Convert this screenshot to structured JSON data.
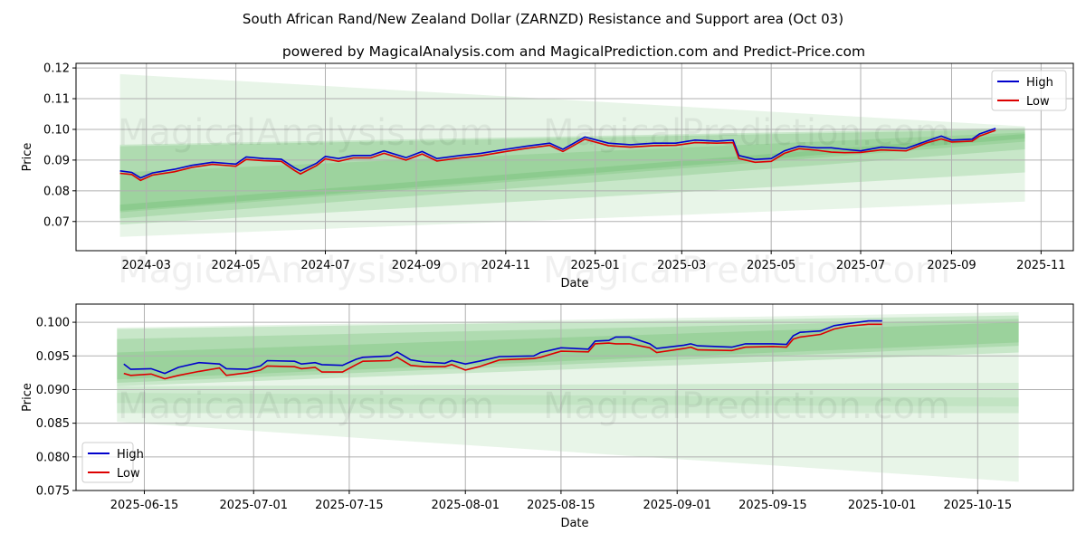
{
  "title": "South African Rand/New Zealand Dollar (ZARNZD) Resistance and Support area (Oct 03)",
  "subtitle": "powered by MagicalAnalysis.com and MagicalPrediction.com and Predict-Price.com",
  "watermarks": [
    "MagicalAnalysis.com",
    "MagicalPrediction.com"
  ],
  "colors": {
    "high": "#0000cc",
    "low": "#dd0000",
    "band": "#4caf50"
  },
  "chart_data": [
    {
      "type": "line",
      "xlabel": "Date",
      "ylabel": "Price",
      "xlim": [
        "2024-01-13",
        "2025-11-23"
      ],
      "ylim": [
        0.0605,
        0.1215
      ],
      "yticks": [
        "0.07",
        "0.08",
        "0.09",
        "0.10",
        "0.11",
        "0.12"
      ],
      "xticks": [
        "2024-03",
        "2024-05",
        "2024-07",
        "2024-09",
        "2024-11",
        "2025-01",
        "2025-03",
        "2025-05",
        "2025-07",
        "2025-09",
        "2025-11"
      ],
      "grid": true,
      "legend": "top-right",
      "legend_entries": [
        "High",
        "Low"
      ],
      "bands": {
        "start": "2024-02-12",
        "end": "2025-10-21",
        "items": [
          {
            "start": [
              0.065,
              0.118
            ],
            "end": [
              0.0765,
              0.101
            ],
            "opacity": 0.13
          },
          {
            "start": [
              0.069,
              0.095
            ],
            "end": [
              0.086,
              0.1005
            ],
            "opacity": 0.2
          },
          {
            "start": [
              0.071,
              0.0945
            ],
            "end": [
              0.0935,
              0.1
            ],
            "opacity": 0.2
          },
          {
            "start": [
              0.073,
              0.086
            ],
            "end": [
              0.096,
              0.099
            ],
            "opacity": 0.18
          },
          {
            "start": [
              0.0735,
              0.0755
            ],
            "end": [
              0.097,
              0.0985
            ],
            "opacity": 0.2
          }
        ]
      },
      "series": [
        {
          "name": "High",
          "x": [
            "2024-02-12",
            "2024-02-20",
            "2024-02-26",
            "2024-03-05",
            "2024-03-20",
            "2024-04-01",
            "2024-04-15",
            "2024-05-01",
            "2024-05-08",
            "2024-05-20",
            "2024-06-01",
            "2024-06-10",
            "2024-06-14",
            "2024-06-25",
            "2024-07-01",
            "2024-07-10",
            "2024-07-20",
            "2024-08-01",
            "2024-08-10",
            "2024-08-25",
            "2024-09-05",
            "2024-09-15",
            "2024-10-01",
            "2024-10-15",
            "2024-11-01",
            "2024-11-15",
            "2024-12-01",
            "2024-12-10",
            "2024-12-25",
            "2025-01-10",
            "2025-01-25",
            "2025-02-10",
            "2025-02-25",
            "2025-03-10",
            "2025-03-25",
            "2025-04-05",
            "2025-04-09",
            "2025-04-20",
            "2025-05-01",
            "2025-05-10",
            "2025-05-20",
            "2025-06-01",
            "2025-06-11",
            "2025-06-20",
            "2025-07-01",
            "2025-07-15",
            "2025-08-01",
            "2025-08-15",
            "2025-08-25",
            "2025-09-01",
            "2025-09-15",
            "2025-09-20",
            "2025-10-01"
          ],
          "values": [
            0.0865,
            0.086,
            0.0842,
            0.0858,
            0.087,
            0.0883,
            0.0893,
            0.0887,
            0.091,
            0.0905,
            0.0903,
            0.0875,
            0.0865,
            0.089,
            0.0912,
            0.0905,
            0.0915,
            0.0915,
            0.093,
            0.0908,
            0.0928,
            0.0905,
            0.0915,
            0.0922,
            0.0935,
            0.0945,
            0.0955,
            0.0935,
            0.0975,
            0.0955,
            0.095,
            0.0955,
            0.0955,
            0.0965,
            0.0962,
            0.0965,
            0.0915,
            0.0902,
            0.0905,
            0.093,
            0.0945,
            0.094,
            0.094,
            0.0935,
            0.093,
            0.0942,
            0.0938,
            0.0962,
            0.0978,
            0.0965,
            0.0968,
            0.0985,
            0.1003
          ]
        },
        {
          "name": "Low",
          "x": [
            "2024-02-12",
            "2024-02-20",
            "2024-02-26",
            "2024-03-05",
            "2024-03-20",
            "2024-04-01",
            "2024-04-15",
            "2024-05-01",
            "2024-05-08",
            "2024-05-20",
            "2024-06-01",
            "2024-06-10",
            "2024-06-14",
            "2024-06-25",
            "2024-07-01",
            "2024-07-10",
            "2024-07-20",
            "2024-08-01",
            "2024-08-10",
            "2024-08-25",
            "2024-09-05",
            "2024-09-15",
            "2024-10-01",
            "2024-10-15",
            "2024-11-01",
            "2024-11-15",
            "2024-12-01",
            "2024-12-10",
            "2024-12-25",
            "2025-01-10",
            "2025-01-25",
            "2025-02-10",
            "2025-02-25",
            "2025-03-10",
            "2025-03-25",
            "2025-04-05",
            "2025-04-09",
            "2025-04-20",
            "2025-05-01",
            "2025-05-10",
            "2025-05-20",
            "2025-06-01",
            "2025-06-11",
            "2025-06-20",
            "2025-07-01",
            "2025-07-15",
            "2025-08-01",
            "2025-08-15",
            "2025-08-25",
            "2025-09-01",
            "2025-09-15",
            "2025-09-20",
            "2025-10-01"
          ],
          "values": [
            0.0857,
            0.0853,
            0.0834,
            0.0851,
            0.0862,
            0.0876,
            0.0886,
            0.088,
            0.0902,
            0.0898,
            0.0896,
            0.0866,
            0.0855,
            0.0882,
            0.0904,
            0.0896,
            0.0907,
            0.0907,
            0.0922,
            0.09,
            0.092,
            0.0897,
            0.0907,
            0.0914,
            0.0928,
            0.0938,
            0.0948,
            0.0928,
            0.0968,
            0.0947,
            0.0942,
            0.0947,
            0.0948,
            0.0957,
            0.0955,
            0.0957,
            0.0905,
            0.0893,
            0.0896,
            0.0922,
            0.0937,
            0.0932,
            0.0926,
            0.0924,
            0.0925,
            0.0933,
            0.093,
            0.0956,
            0.0969,
            0.0959,
            0.0962,
            0.0978,
            0.0997
          ]
        }
      ]
    },
    {
      "type": "line",
      "xlabel": "Date",
      "ylabel": "Price",
      "xlim": [
        "2025-06-05",
        "2025-10-29"
      ],
      "ylim": [
        0.075,
        0.1027
      ],
      "yticks": [
        "0.075",
        "0.080",
        "0.085",
        "0.090",
        "0.095",
        "0.100"
      ],
      "xticks": [
        "2025-06-15",
        "2025-07-01",
        "2025-07-15",
        "2025-08-01",
        "2025-08-15",
        "2025-09-01",
        "2025-09-15",
        "2025-10-01",
        "2025-10-15"
      ],
      "grid": true,
      "legend": "bottom-left",
      "legend_entries": [
        "High",
        "Low"
      ],
      "bands": {
        "start": "2025-06-11",
        "end": "2025-10-21",
        "items": [
          {
            "start": [
              0.0852,
              0.0992
            ],
            "end": [
              0.0763,
              0.1015
            ],
            "opacity": 0.13
          },
          {
            "start": [
              0.0905,
              0.099
            ],
            "end": [
              0.0955,
              0.101
            ],
            "opacity": 0.2
          },
          {
            "start": [
              0.091,
              0.0975
            ],
            "end": [
              0.0965,
              0.1005
            ],
            "opacity": 0.2
          },
          {
            "start": [
              0.0915,
              0.0955
            ],
            "end": [
              0.097,
              0.1
            ],
            "opacity": 0.2
          },
          {
            "start": [
              0.0865,
              0.0905
            ],
            "end": [
              0.0865,
              0.091
            ],
            "opacity": 0.15
          },
          {
            "start": [
              0.088,
              0.0895
            ],
            "end": [
              0.0875,
              0.0888
            ],
            "opacity": 0.1
          }
        ]
      },
      "series": [
        {
          "name": "High",
          "x": [
            "2025-06-12",
            "2025-06-13",
            "2025-06-16",
            "2025-06-18",
            "2025-06-20",
            "2025-06-23",
            "2025-06-26",
            "2025-06-27",
            "2025-06-30",
            "2025-07-02",
            "2025-07-03",
            "2025-07-07",
            "2025-07-08",
            "2025-07-10",
            "2025-07-11",
            "2025-07-14",
            "2025-07-16",
            "2025-07-17",
            "2025-07-21",
            "2025-07-22",
            "2025-07-24",
            "2025-07-26",
            "2025-07-29",
            "2025-07-30",
            "2025-08-01",
            "2025-08-03",
            "2025-08-06",
            "2025-08-11",
            "2025-08-12",
            "2025-08-15",
            "2025-08-19",
            "2025-08-20",
            "2025-08-22",
            "2025-08-23",
            "2025-08-25",
            "2025-08-28",
            "2025-08-29",
            "2025-09-02",
            "2025-09-03",
            "2025-09-04",
            "2025-09-09",
            "2025-09-11",
            "2025-09-15",
            "2025-09-17",
            "2025-09-18",
            "2025-09-19",
            "2025-09-22",
            "2025-09-24",
            "2025-09-26",
            "2025-09-29",
            "2025-10-01"
          ],
          "values": [
            0.0938,
            0.093,
            0.0931,
            0.0924,
            0.0933,
            0.094,
            0.0938,
            0.0931,
            0.093,
            0.0935,
            0.0943,
            0.0942,
            0.0938,
            0.094,
            0.0937,
            0.0936,
            0.0945,
            0.0948,
            0.095,
            0.0956,
            0.0944,
            0.0941,
            0.0939,
            0.0943,
            0.0938,
            0.0942,
            0.0949,
            0.095,
            0.0955,
            0.0962,
            0.096,
            0.0972,
            0.0973,
            0.0978,
            0.0978,
            0.0968,
            0.0961,
            0.0966,
            0.0968,
            0.0965,
            0.0963,
            0.0968,
            0.0968,
            0.0967,
            0.098,
            0.0985,
            0.0987,
            0.0995,
            0.0998,
            0.1002,
            0.1002
          ]
        },
        {
          "name": "Low",
          "x": [
            "2025-06-12",
            "2025-06-13",
            "2025-06-16",
            "2025-06-18",
            "2025-06-20",
            "2025-06-23",
            "2025-06-26",
            "2025-06-27",
            "2025-06-30",
            "2025-07-02",
            "2025-07-03",
            "2025-07-07",
            "2025-07-08",
            "2025-07-10",
            "2025-07-11",
            "2025-07-14",
            "2025-07-16",
            "2025-07-17",
            "2025-07-21",
            "2025-07-22",
            "2025-07-24",
            "2025-07-26",
            "2025-07-29",
            "2025-07-30",
            "2025-08-01",
            "2025-08-03",
            "2025-08-06",
            "2025-08-11",
            "2025-08-12",
            "2025-08-15",
            "2025-08-19",
            "2025-08-20",
            "2025-08-22",
            "2025-08-23",
            "2025-08-25",
            "2025-08-28",
            "2025-08-29",
            "2025-09-02",
            "2025-09-03",
            "2025-09-04",
            "2025-09-09",
            "2025-09-11",
            "2025-09-15",
            "2025-09-17",
            "2025-09-18",
            "2025-09-19",
            "2025-09-22",
            "2025-09-24",
            "2025-09-26",
            "2025-09-29",
            "2025-10-01"
          ],
          "values": [
            0.0924,
            0.0921,
            0.0923,
            0.0916,
            0.0921,
            0.0927,
            0.0932,
            0.0921,
            0.0925,
            0.0929,
            0.0935,
            0.0934,
            0.0931,
            0.0933,
            0.0926,
            0.0926,
            0.0937,
            0.0942,
            0.0943,
            0.0948,
            0.0936,
            0.0934,
            0.0934,
            0.0937,
            0.0929,
            0.0934,
            0.0944,
            0.0946,
            0.0948,
            0.0957,
            0.0956,
            0.0968,
            0.0969,
            0.0968,
            0.0968,
            0.0962,
            0.0955,
            0.0961,
            0.0963,
            0.0959,
            0.0958,
            0.0963,
            0.0964,
            0.0963,
            0.0975,
            0.0978,
            0.0982,
            0.099,
            0.0994,
            0.0997,
            0.0997
          ]
        }
      ]
    }
  ]
}
